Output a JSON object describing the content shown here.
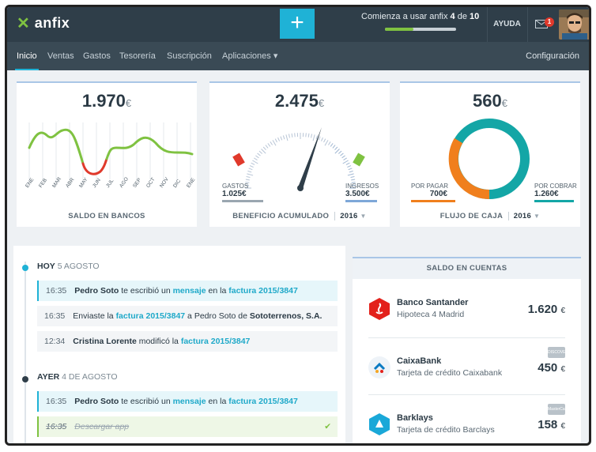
{
  "brand": {
    "name": "anfix"
  },
  "topbar": {
    "add_label": "+",
    "progress_prefix": "Comienza a usar anfix",
    "progress_current": "4",
    "progress_of": "de",
    "progress_total": "10",
    "progress_fraction": 0.4,
    "help_label": "AYUDA",
    "mail_badge": "1"
  },
  "nav": {
    "items": [
      "Inicio",
      "Ventas",
      "Gastos",
      "Tesorería",
      "Suscripción",
      "Aplicaciones ▾"
    ],
    "config_label": "Configuración"
  },
  "cards": {
    "bancos": {
      "value": "1.970",
      "currency": "€",
      "title": "SALDO EN BANCOS",
      "months": [
        "ENE",
        "FEB",
        "MAR",
        "ABR",
        "MAY",
        "JUN",
        "JUL",
        "AGO",
        "SEP",
        "OCT",
        "NOV",
        "DIC",
        "ENE"
      ]
    },
    "beneficio": {
      "value": "2.475",
      "currency": "€",
      "title": "BENEFICIO ACUMULADO",
      "year": "2016",
      "gastos_label": "GASTOS",
      "gastos_value": "1.025€",
      "ingresos_label": "INGRESOS",
      "ingresos_value": "3.500€"
    },
    "caja": {
      "value": "560",
      "currency": "€",
      "title": "FLUJO DE CAJA",
      "year": "2016",
      "pagar_label": "POR PAGAR",
      "pagar_value": "700€",
      "cobrar_label": "POR COBRAR",
      "cobrar_value": "1.260€"
    }
  },
  "timeline": {
    "today": {
      "label": "HOY",
      "date": "5 AGOSTO"
    },
    "yesterday": {
      "label": "AYER",
      "date": "4 DE AGOSTO"
    },
    "events_today": [
      {
        "time": "16:35",
        "a": "Pedro Soto",
        "b": " te escribió un ",
        "c": "mensaje",
        "d": " en la ",
        "e": "factura 2015/3847"
      },
      {
        "time": "16:35",
        "a": "Enviaste la ",
        "b": "factura 2015/3847",
        "c": " a Pedro Soto de ",
        "d": "Sototerrenos, S.A."
      },
      {
        "time": "12:34",
        "a": "Cristina Lorente",
        "b": " modificó la ",
        "c": "factura 2015/3847"
      }
    ],
    "events_yesterday": [
      {
        "time": "16:35",
        "a": "Pedro Soto",
        "b": " te escribió un ",
        "c": "mensaje",
        "d": " en la ",
        "e": "factura 2015/3847"
      },
      {
        "time": "16:35",
        "a": "Descargar app",
        "check": "✔"
      }
    ]
  },
  "accounts": {
    "title": "SALDO EN CUENTAS",
    "items": [
      {
        "name": "Banco Santander",
        "desc": "Hipoteca 4 Madrid",
        "amount": "1.620",
        "currency": "€",
        "icon": "santander-icon",
        "color": "#e3211b"
      },
      {
        "name": "CaixaBank",
        "desc": "Tarjeta de crédito Caixabank",
        "amount": "450",
        "currency": "€",
        "icon": "caixabank-icon",
        "color": "#0a7ac2",
        "card": "DISCOVER"
      },
      {
        "name": "Barklays",
        "desc": "Tarjeta de crédito Barclays",
        "amount": "158",
        "currency": "€",
        "icon": "barclays-icon",
        "color": "#1aa8d8",
        "card": "MasterCard"
      }
    ]
  },
  "colors": {
    "accent": "#1fb2d6",
    "green": "#7fc241",
    "red": "#e0392b",
    "orange": "#f07f1d",
    "teal": "#14a6a6",
    "dark": "#2f3e49"
  }
}
